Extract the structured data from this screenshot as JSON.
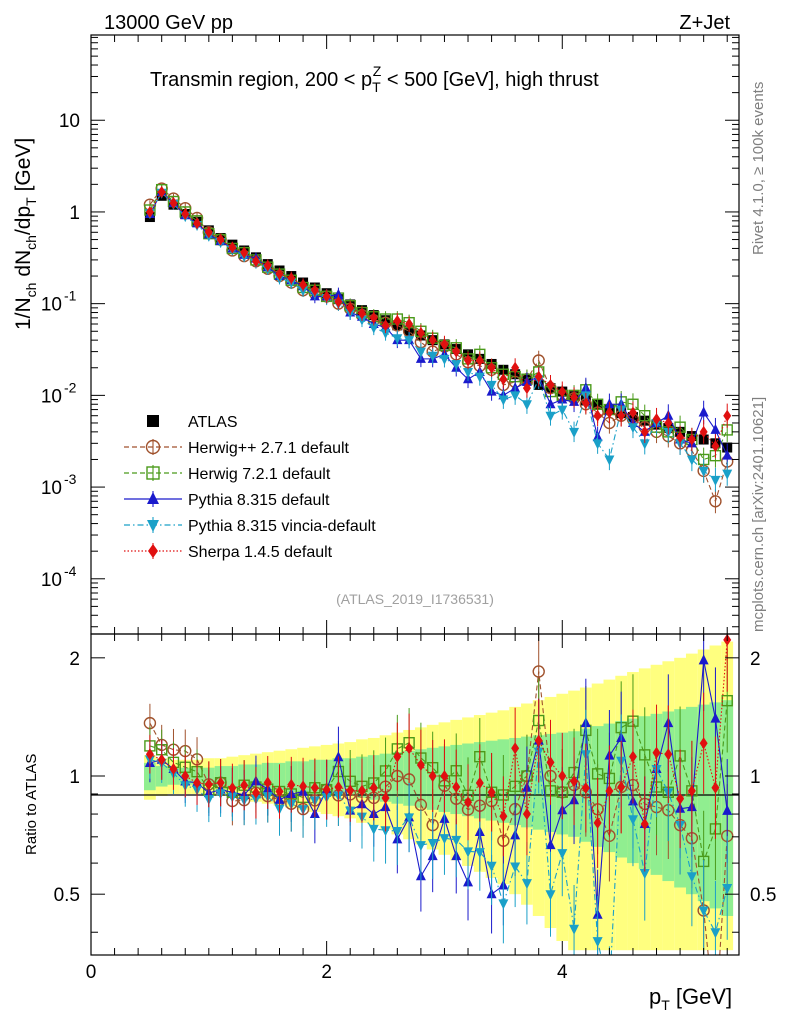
{
  "header": {
    "energy": "13000 GeV pp",
    "process": "Z+Jet"
  },
  "side_text": {
    "rivet": "Rivet 4.1.0, ≥ 100k events",
    "mcplots": "mcplots.cern.ch [arXiv:2401.10621]"
  },
  "chart_data": {
    "type": "scatter",
    "title_parts": [
      "Transmin region, 200 < p",
      "T",
      "Z",
      " < 500 [GeV], high thrust"
    ],
    "ylabel_parts": [
      "1/N",
      "ch",
      " dN",
      "ch",
      "/dp",
      "T",
      " [GeV]"
    ],
    "ratio_ylabel": "Ratio to ATLAS",
    "xlabel_parts": [
      "p",
      "T",
      " [GeV]"
    ],
    "analysis_id": "(ATLAS_2019_I1736531)",
    "xlim": [
      0,
      5.5
    ],
    "ylim": [
      2.5e-05,
      85
    ],
    "ratio_ylim": [
      0.35,
      2.3
    ],
    "x_ticks": [
      "0",
      "2",
      "4"
    ],
    "y_ticks": {
      "10": "10",
      "1": "1",
      "1e-1": "10",
      "1e-2": "10",
      "1e-3": "10",
      "1e-4": "10",
      "exp": [
        "-1",
        "-2",
        "-3",
        "-4"
      ]
    },
    "ratio_ticks": [
      "0.5",
      "1",
      "2"
    ],
    "x": [
      0.5,
      0.6,
      0.7,
      0.8,
      0.9,
      1.0,
      1.1,
      1.2,
      1.3,
      1.4,
      1.5,
      1.6,
      1.7,
      1.8,
      1.9,
      2.0,
      2.1,
      2.2,
      2.3,
      2.4,
      2.5,
      2.6,
      2.7,
      2.8,
      2.9,
      3.0,
      3.1,
      3.2,
      3.3,
      3.4,
      3.5,
      3.6,
      3.7,
      3.8,
      3.9,
      4.0,
      4.1,
      4.2,
      4.3,
      4.4,
      4.5,
      4.6,
      4.7,
      4.8,
      4.9,
      5.0,
      5.1,
      5.2,
      5.3,
      5.4
    ],
    "series": [
      {
        "name": "ATLAS",
        "color": "#000000",
        "marker": "square-filled",
        "style": "none",
        "values": [
          0.88,
          1.5,
          1.2,
          0.95,
          0.78,
          0.63,
          0.52,
          0.44,
          0.38,
          0.32,
          0.27,
          0.23,
          0.2,
          0.17,
          0.15,
          0.13,
          0.112,
          0.098,
          0.085,
          0.075,
          0.066,
          0.058,
          0.051,
          0.045,
          0.04,
          0.036,
          0.032,
          0.028,
          0.025,
          0.022,
          0.019,
          0.017,
          0.015,
          0.013,
          0.012,
          0.011,
          0.0098,
          0.0088,
          0.0079,
          0.0071,
          0.0064,
          0.0058,
          0.0053,
          0.0048,
          0.0044,
          0.004,
          0.0036,
          0.0033,
          0.003,
          0.0027
        ]
      },
      {
        "name": "Herwig++ 2.7.1 default",
        "color": "#a0522d",
        "marker": "circle-open",
        "style": "dashed",
        "values": [
          1.2,
          1.8,
          1.4,
          1.1,
          0.86,
          0.6,
          0.5,
          0.38,
          0.33,
          0.29,
          0.24,
          0.2,
          0.17,
          0.14,
          0.13,
          0.12,
          0.1,
          0.088,
          0.075,
          0.066,
          0.062,
          0.058,
          0.05,
          0.038,
          0.03,
          0.034,
          0.028,
          0.023,
          0.021,
          0.019,
          0.013,
          0.014,
          0.015,
          0.024,
          0.012,
          0.01,
          0.0093,
          0.008,
          0.0065,
          0.005,
          0.006,
          0.0055,
          0.0045,
          0.004,
          0.0036,
          0.003,
          0.0025,
          0.0015,
          0.0007,
          0.0019
        ]
      },
      {
        "name": "Herwig 7.2.1 default",
        "color": "#4a9a1a",
        "marker": "square-open",
        "style": "dashed",
        "values": [
          1.05,
          1.75,
          1.3,
          1.0,
          0.8,
          0.58,
          0.5,
          0.4,
          0.36,
          0.3,
          0.25,
          0.21,
          0.18,
          0.15,
          0.14,
          0.12,
          0.115,
          0.095,
          0.08,
          0.072,
          0.068,
          0.068,
          0.062,
          0.05,
          0.042,
          0.035,
          0.033,
          0.025,
          0.028,
          0.02,
          0.017,
          0.016,
          0.015,
          0.018,
          0.011,
          0.01,
          0.01,
          0.0115,
          0.008,
          0.007,
          0.0085,
          0.008,
          0.006,
          0.0045,
          0.004,
          0.0045,
          0.0033,
          0.002,
          0.0022,
          0.0042
        ]
      },
      {
        "name": "Pythia 8.315 default",
        "color": "#1a1acc",
        "marker": "triangle-up",
        "style": "solid",
        "values": [
          0.95,
          1.65,
          1.25,
          0.92,
          0.75,
          0.57,
          0.48,
          0.4,
          0.34,
          0.31,
          0.25,
          0.2,
          0.18,
          0.155,
          0.12,
          0.12,
          0.125,
          0.08,
          0.072,
          0.06,
          0.055,
          0.04,
          0.04,
          0.025,
          0.025,
          0.028,
          0.02,
          0.015,
          0.018,
          0.011,
          0.01,
          0.012,
          0.014,
          0.016,
          0.008,
          0.009,
          0.0085,
          0.012,
          0.0035,
          0.008,
          0.008,
          0.005,
          0.004,
          0.005,
          0.006,
          0.0033,
          0.003,
          0.0065,
          0.0042,
          0.0022
        ]
      },
      {
        "name": "Pythia 8.315 vincia-default",
        "color": "#1aa0c8",
        "marker": "triangle-down",
        "style": "dashdot",
        "values": [
          0.97,
          1.62,
          1.22,
          0.9,
          0.72,
          0.55,
          0.47,
          0.39,
          0.33,
          0.28,
          0.24,
          0.19,
          0.17,
          0.14,
          0.13,
          0.115,
          0.1,
          0.08,
          0.067,
          0.055,
          0.048,
          0.042,
          0.04,
          0.03,
          0.027,
          0.025,
          0.022,
          0.018,
          0.016,
          0.013,
          0.009,
          0.01,
          0.008,
          0.015,
          0.006,
          0.007,
          0.004,
          0.01,
          0.003,
          0.002,
          0.007,
          0.0045,
          0.003,
          0.005,
          0.004,
          0.003,
          0.002,
          0.0015,
          0.0012,
          0.0014
        ]
      },
      {
        "name": "Sherpa 1.4.5 default",
        "color": "#e01010",
        "marker": "diamond",
        "style": "dotted",
        "values": [
          1.0,
          1.65,
          1.25,
          0.95,
          0.75,
          0.6,
          0.5,
          0.41,
          0.36,
          0.29,
          0.26,
          0.21,
          0.19,
          0.16,
          0.14,
          0.12,
          0.105,
          0.09,
          0.078,
          0.07,
          0.058,
          0.065,
          0.06,
          0.048,
          0.04,
          0.036,
          0.03,
          0.024,
          0.024,
          0.02,
          0.015,
          0.02,
          0.012,
          0.016,
          0.013,
          0.011,
          0.0095,
          0.0082,
          0.006,
          0.0065,
          0.006,
          0.0065,
          0.004,
          0.0055,
          0.005,
          0.0035,
          0.0033,
          0.004,
          0.0028,
          0.006
        ]
      }
    ],
    "mc_error_band": {
      "green_rel": [
        0.08,
        0.06,
        0.05,
        0.05,
        0.05,
        0.05,
        0.06,
        0.06,
        0.07,
        0.07,
        0.08,
        0.08,
        0.09,
        0.09,
        0.1,
        0.1,
        0.11,
        0.11,
        0.12,
        0.13,
        0.14,
        0.15,
        0.16,
        0.17,
        0.18,
        0.19,
        0.2,
        0.21,
        0.22,
        0.23,
        0.24,
        0.25,
        0.26,
        0.27,
        0.28,
        0.29,
        0.3,
        0.32,
        0.34,
        0.36,
        0.38,
        0.4,
        0.42,
        0.44,
        0.46,
        0.48,
        0.5,
        0.52,
        0.54,
        0.56
      ],
      "yellow_rel": [
        0.13,
        0.11,
        0.1,
        0.1,
        0.1,
        0.11,
        0.11,
        0.12,
        0.13,
        0.14,
        0.15,
        0.16,
        0.17,
        0.18,
        0.19,
        0.2,
        0.21,
        0.22,
        0.24,
        0.25,
        0.27,
        0.29,
        0.31,
        0.33,
        0.35,
        0.37,
        0.39,
        0.41,
        0.43,
        0.45,
        0.47,
        0.5,
        0.53,
        0.56,
        0.59,
        0.62,
        0.65,
        0.68,
        0.72,
        0.76,
        0.8,
        0.84,
        0.88,
        0.92,
        0.96,
        1.0,
        1.05,
        1.1,
        1.15,
        1.2
      ]
    }
  }
}
